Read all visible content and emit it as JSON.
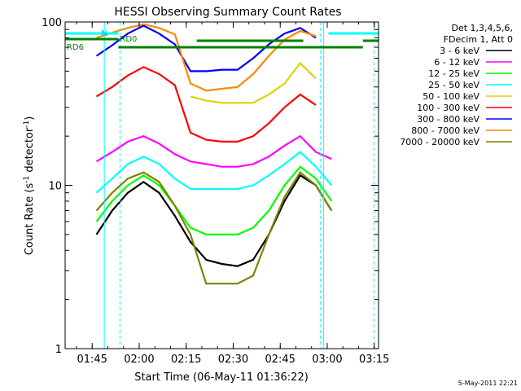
{
  "chart_data": {
    "type": "line",
    "title": "HESSI Observing Summary Count Rates",
    "xlabel": "Start Time (06-May-11 01:36:22)",
    "ylabel": "Count Rate (s",
    "ylabel_exp": "-1",
    "ylabel_mid": " detector",
    "ylabel_end": ")",
    "yscale": "log",
    "ylim": [
      1,
      100
    ],
    "xlim": [
      "01:36:22",
      "03:16:22"
    ],
    "x_tick_labels": [
      "01:45",
      "02:00",
      "02:15",
      "02:30",
      "02:45",
      "03:00",
      "03:15"
    ],
    "x_tick_minutes": [
      8.63,
      23.63,
      38.63,
      53.63,
      68.63,
      83.63,
      98.63
    ],
    "y_tick_labels": [
      "1",
      "10",
      "100"
    ],
    "y_tick_values": [
      1,
      10,
      100
    ],
    "legend_header": [
      "Det 1,3,4,5,6,",
      "FDecim 1, Att 0"
    ],
    "annotations": {
      "rd0": "RD0",
      "rd6": "RD6",
      "n": "N"
    },
    "footer_date": "5-May-2011 22:21",
    "series": [
      {
        "name": "3 - 6 keV",
        "color": "#000000",
        "x": [
          0,
          5,
          10,
          15,
          20,
          25,
          30,
          35,
          40,
          45,
          50,
          55,
          60,
          65,
          70,
          75,
          80,
          85,
          90,
          95
        ],
        "y": [
          null,
          null,
          5,
          7,
          9,
          10.5,
          9,
          6.5,
          4.5,
          3.5,
          3.3,
          3.2,
          3.5,
          5,
          8,
          11.5,
          10,
          7,
          null,
          null
        ]
      },
      {
        "name": "6 - 12 keV",
        "color": "#ff00ff",
        "x": [
          0,
          5,
          10,
          15,
          20,
          25,
          30,
          35,
          40,
          45,
          50,
          55,
          60,
          65,
          70,
          75,
          80,
          85,
          90,
          95
        ],
        "y": [
          null,
          null,
          14,
          16,
          18.5,
          20,
          18,
          15.5,
          14,
          13.5,
          13,
          13,
          13.5,
          15,
          17.5,
          20,
          16,
          14.5,
          null,
          null
        ]
      },
      {
        "name": "12 - 25 keV",
        "color": "#00ff00",
        "x": [
          0,
          5,
          10,
          15,
          20,
          25,
          30,
          35,
          40,
          45,
          50,
          55,
          60,
          65,
          70,
          75,
          80,
          85,
          90,
          95
        ],
        "y": [
          null,
          null,
          6,
          8,
          10,
          11.5,
          10,
          7.5,
          5.5,
          5,
          5,
          5,
          5.5,
          7,
          10,
          13,
          11,
          8,
          null,
          null
        ]
      },
      {
        "name": "25 - 50 keV",
        "color": "#00ffff",
        "x": [
          0,
          5,
          10,
          15,
          20,
          25,
          30,
          35,
          40,
          45,
          50,
          55,
          60,
          65,
          70,
          75,
          80,
          85,
          90,
          95
        ],
        "y": [
          null,
          null,
          9,
          11,
          13.5,
          15,
          13.5,
          11,
          9.5,
          9.5,
          9.5,
          9.5,
          10,
          11.5,
          13.5,
          16,
          13,
          10,
          null,
          null
        ]
      },
      {
        "name": "50 - 100 keV",
        "color": "#e0d000",
        "x": [
          0,
          5,
          10,
          15,
          20,
          25,
          30,
          35,
          40,
          45,
          50,
          55,
          60,
          65,
          70,
          75,
          80,
          85,
          90,
          95
        ],
        "y": [
          null,
          null,
          null,
          null,
          null,
          null,
          null,
          null,
          35,
          33,
          32,
          32,
          32,
          36,
          42,
          56,
          45,
          null,
          null,
          null
        ]
      },
      {
        "name": "100 - 300 keV",
        "color": "#ff0000",
        "x": [
          0,
          5,
          10,
          15,
          20,
          25,
          30,
          35,
          40,
          45,
          50,
          55,
          60,
          65,
          70,
          75,
          80,
          85,
          90,
          95
        ],
        "y": [
          null,
          null,
          35,
          40,
          47,
          53,
          48,
          41,
          21,
          19,
          18.5,
          18.5,
          20,
          24,
          30,
          36,
          31,
          null,
          null,
          null
        ]
      },
      {
        "name": "300 - 800 keV",
        "color": "#0000ff",
        "x": [
          0,
          5,
          10,
          15,
          20,
          25,
          30,
          35,
          40,
          45,
          50,
          55,
          60,
          65,
          70,
          75,
          80,
          85,
          90,
          95
        ],
        "y": [
          null,
          null,
          62,
          72,
          85,
          95,
          85,
          73,
          50,
          50,
          51,
          51,
          60,
          73,
          85,
          92,
          80,
          null,
          null,
          null
        ]
      },
      {
        "name": "800 - 7000 keV",
        "color": "#ff8800",
        "x": [
          0,
          5,
          10,
          15,
          20,
          25,
          30,
          35,
          40,
          45,
          50,
          55,
          60,
          65,
          70,
          75,
          80,
          85,
          90,
          95
        ],
        "y": [
          null,
          null,
          80,
          86,
          92,
          97,
          92,
          84,
          42,
          38,
          39,
          40,
          48,
          62,
          78,
          88,
          82,
          null,
          null,
          null
        ]
      },
      {
        "name": "7000 - 20000 keV",
        "color": "#808000",
        "x": [
          0,
          5,
          10,
          15,
          20,
          25,
          30,
          35,
          40,
          45,
          50,
          55,
          60,
          65,
          70,
          75,
          80,
          85,
          90,
          95
        ],
        "y": [
          null,
          null,
          7,
          9,
          11,
          12,
          10.5,
          7.5,
          5,
          2.5,
          2.5,
          2.5,
          2.8,
          5,
          8.5,
          12,
          10,
          7,
          null,
          null
        ]
      }
    ]
  }
}
